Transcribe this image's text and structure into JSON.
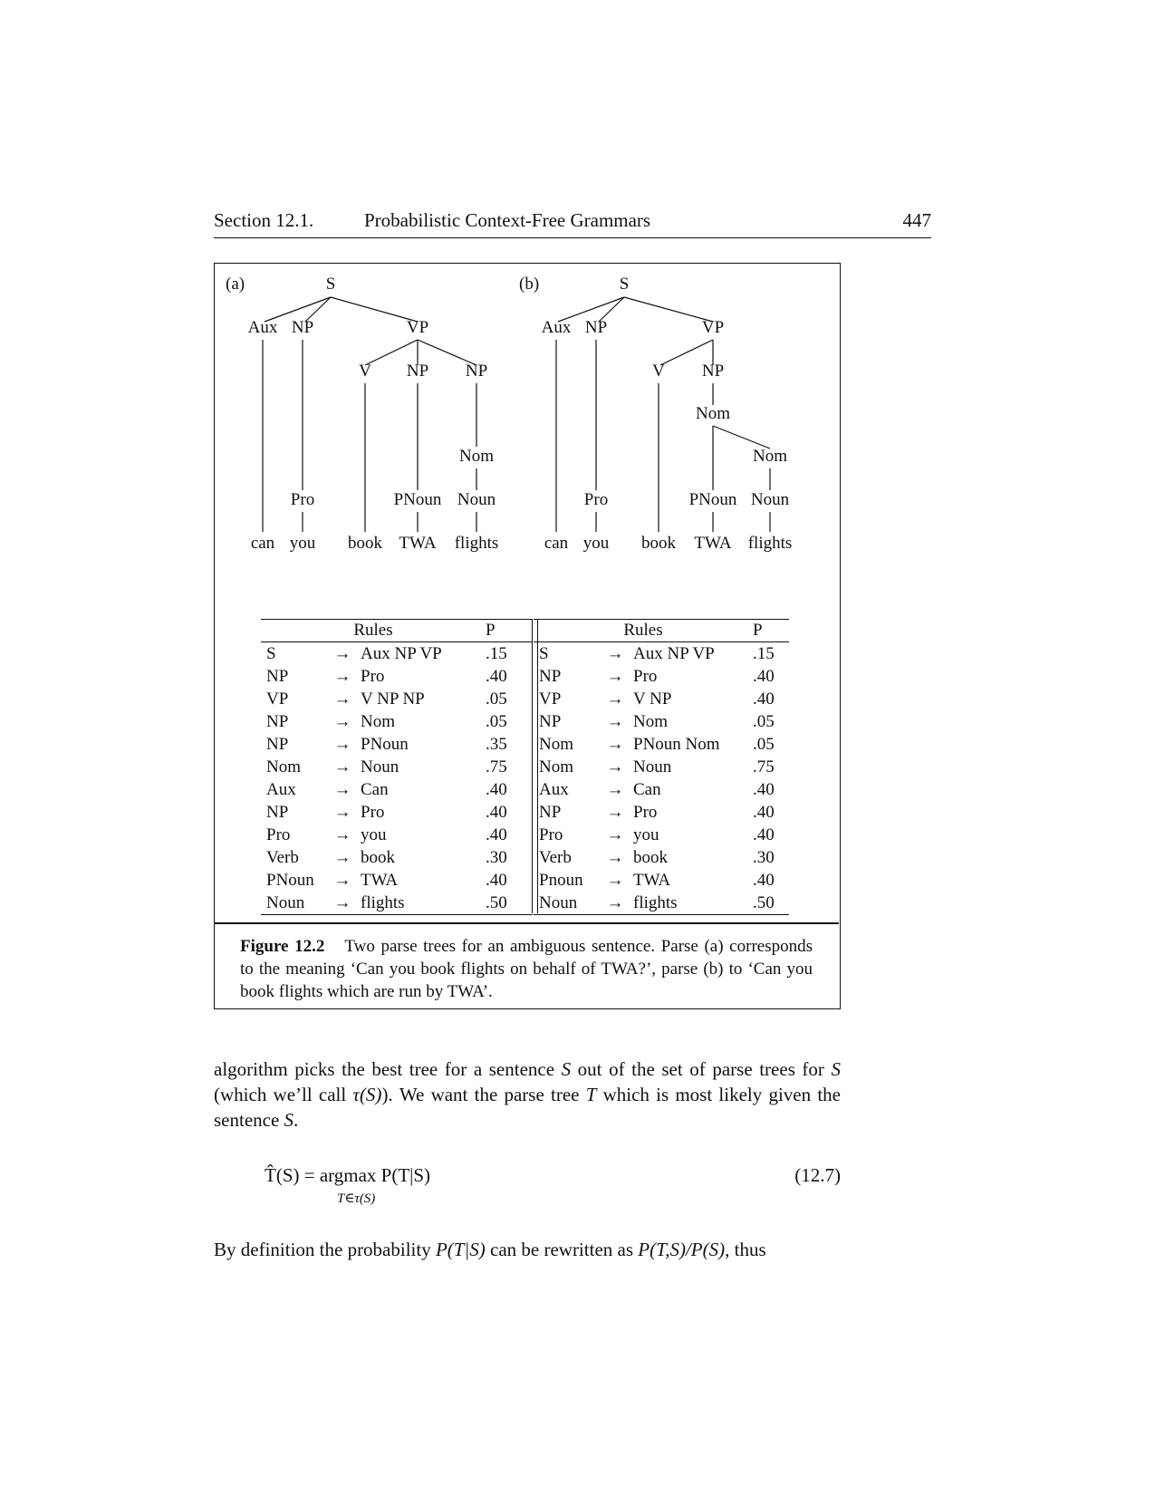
{
  "header": {
    "section": "Section 12.1.",
    "title": "Probabilistic Context-Free Grammars",
    "page_number": "447"
  },
  "tree_a": {
    "label": "(a)",
    "nodes": {
      "s": "S",
      "aux": "Aux",
      "np1": "NP",
      "vp": "VP",
      "v": "V",
      "np2": "NP",
      "np3": "NP",
      "nom": "Nom",
      "pro": "Pro",
      "pnoun": "PNoun",
      "noun": "Noun"
    },
    "words": [
      "can",
      "you",
      "book",
      "TWA",
      "flights"
    ]
  },
  "tree_b": {
    "label": "(b)",
    "nodes": {
      "s": "S",
      "aux": "Aux",
      "np1": "NP",
      "vp": "VP",
      "v": "V",
      "np2": "NP",
      "nom1": "Nom",
      "nom2": "Nom",
      "pro": "Pro",
      "pnoun": "PNoun",
      "noun": "Noun"
    },
    "words": [
      "can",
      "you",
      "book",
      "TWA",
      "flights"
    ]
  },
  "rules_left": {
    "header_rules": "Rules",
    "header_p": "P",
    "rows": [
      {
        "lhs": "S",
        "rhs": "Aux NP VP",
        "p": ".15"
      },
      {
        "lhs": "NP",
        "rhs": "Pro",
        "p": ".40"
      },
      {
        "lhs": "VP",
        "rhs": "V NP NP",
        "p": ".05"
      },
      {
        "lhs": "NP",
        "rhs": "Nom",
        "p": ".05"
      },
      {
        "lhs": "NP",
        "rhs": "PNoun",
        "p": ".35"
      },
      {
        "lhs": "Nom",
        "rhs": "Noun",
        "p": ".75"
      },
      {
        "lhs": "Aux",
        "rhs": "Can",
        "p": ".40"
      },
      {
        "lhs": "NP",
        "rhs": "Pro",
        "p": ".40"
      },
      {
        "lhs": "Pro",
        "rhs": "you",
        "p": ".40"
      },
      {
        "lhs": "Verb",
        "rhs": "book",
        "p": ".30"
      },
      {
        "lhs": "PNoun",
        "rhs": "TWA",
        "p": ".40"
      },
      {
        "lhs": "Noun",
        "rhs": "flights",
        "p": ".50"
      }
    ]
  },
  "rules_right": {
    "header_rules": "Rules",
    "header_p": "P",
    "rows": [
      {
        "lhs": "S",
        "rhs": "Aux NP VP",
        "p": ".15"
      },
      {
        "lhs": "NP",
        "rhs": "Pro",
        "p": ".40"
      },
      {
        "lhs": "VP",
        "rhs": "V NP",
        "p": ".40"
      },
      {
        "lhs": "NP",
        "rhs": "Nom",
        "p": ".05"
      },
      {
        "lhs": "Nom",
        "rhs": "PNoun Nom",
        "p": ".05"
      },
      {
        "lhs": "Nom",
        "rhs": "Noun",
        "p": ".75"
      },
      {
        "lhs": "Aux",
        "rhs": "Can",
        "p": ".40"
      },
      {
        "lhs": "NP",
        "rhs": "Pro",
        "p": ".40"
      },
      {
        "lhs": "Pro",
        "rhs": "you",
        "p": ".40"
      },
      {
        "lhs": "Verb",
        "rhs": "book",
        "p": ".30"
      },
      {
        "lhs": "Pnoun",
        "rhs": "TWA",
        "p": ".40"
      },
      {
        "lhs": "Noun",
        "rhs": "flights",
        "p": ".50"
      }
    ]
  },
  "arrow_glyph": "→",
  "caption": {
    "label": "Figure 12.2",
    "text": "Two parse trees for an ambiguous sentence. Parse (a) corresponds to the meaning ‘Can you book flights on behalf of TWA?’, parse (b) to ‘Can you book flights which are run by TWA’."
  },
  "paragraph1": {
    "p1": "algorithm picks the best tree for a sentence ",
    "v1": "S",
    "p2": " out of the set of parse trees for ",
    "v2": "S",
    "p3": " (which we’ll call ",
    "v3": "τ(S)",
    "p4": "). We want the parse tree ",
    "v4": "T",
    "p5": " which is most likely given the sentence ",
    "v5": "S",
    "p6": "."
  },
  "equation": {
    "lhs": "T̂(S) = argmax P(T|S)",
    "subscript": "T∈τ(S)",
    "number": "(12.7)"
  },
  "paragraph2": {
    "p1": "By definition the probability ",
    "v1": "P(T|S)",
    "p2": " can be rewritten as ",
    "v2": "P(T,S)/P(S)",
    "p3": ", thus"
  }
}
